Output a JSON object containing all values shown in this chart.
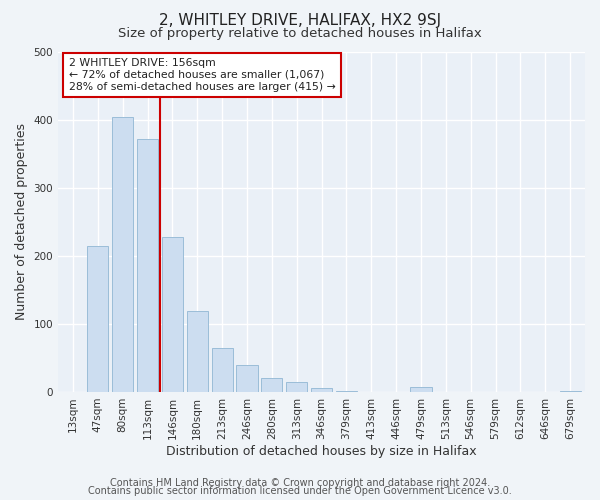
{
  "title": "2, WHITLEY DRIVE, HALIFAX, HX2 9SJ",
  "subtitle": "Size of property relative to detached houses in Halifax",
  "xlabel": "Distribution of detached houses by size in Halifax",
  "ylabel": "Number of detached properties",
  "bar_labels": [
    "13sqm",
    "47sqm",
    "80sqm",
    "113sqm",
    "146sqm",
    "180sqm",
    "213sqm",
    "246sqm",
    "280sqm",
    "313sqm",
    "346sqm",
    "379sqm",
    "413sqm",
    "446sqm",
    "479sqm",
    "513sqm",
    "546sqm",
    "579sqm",
    "612sqm",
    "646sqm",
    "679sqm"
  ],
  "bar_values": [
    0,
    214,
    404,
    372,
    228,
    119,
    64,
    40,
    20,
    14,
    6,
    1,
    0,
    0,
    7,
    0,
    0,
    0,
    0,
    0,
    2
  ],
  "bar_color": "#ccddf0",
  "bar_edge_color": "#9bbdd8",
  "vline_x_index": 4,
  "vline_color": "#cc0000",
  "annotation_line1": "2 WHITLEY DRIVE: 156sqm",
  "annotation_line2": "← 72% of detached houses are smaller (1,067)",
  "annotation_line3": "28% of semi-detached houses are larger (415) →",
  "ylim": [
    0,
    500
  ],
  "footer_line1": "Contains HM Land Registry data © Crown copyright and database right 2024.",
  "footer_line2": "Contains public sector information licensed under the Open Government Licence v3.0.",
  "bg_color": "#f0f4f8",
  "plot_bg_color": "#eaf0f7",
  "grid_color": "#ffffff",
  "title_fontsize": 11,
  "subtitle_fontsize": 9.5,
  "axis_label_fontsize": 9,
  "tick_fontsize": 7.5,
  "footer_fontsize": 7
}
